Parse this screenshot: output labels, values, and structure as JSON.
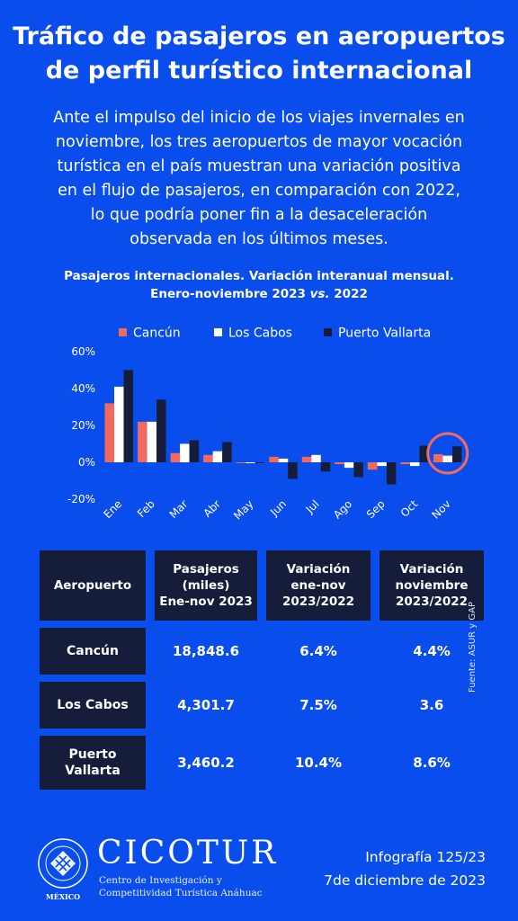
{
  "title_line1": "Tráfico de pasajeros en aeropuertos",
  "title_line2": "de perfil turístico internacional",
  "intro_lines": [
    "Ante el impulso del inicio de los viajes invernales en",
    "noviembre, los tres aeropuertos de mayor vocación",
    "turística en el país muestran una variación positiva",
    "en el flujo de pasajeros, en comparación con 2022,",
    "lo que podría poner fin a la desaceleración",
    "observada en los últimos meses."
  ],
  "chart_title_line1": "Pasajeros internacionales. Variación interanual mensual.",
  "chart_title_line2a": "Enero-noviembre 2023 ",
  "chart_title_vs": "vs.",
  "chart_title_line2b": " 2022",
  "chart_data": {
    "type": "bar",
    "categories": [
      "Ene",
      "Feb",
      "Mar",
      "Abr",
      "May",
      "Jun",
      "Jul",
      "Ago",
      "Sep",
      "Oct",
      "Nov"
    ],
    "series": [
      {
        "name": "Cancún",
        "color": "#f26a5e",
        "values": [
          32,
          22,
          5,
          4,
          0,
          3,
          3,
          -1,
          -4,
          -1,
          4.4
        ]
      },
      {
        "name": "Los Cabos",
        "color": "#ffffff",
        "values": [
          41,
          22,
          10,
          6,
          0,
          2,
          4,
          -3,
          -2,
          -2,
          3.6
        ]
      },
      {
        "name": "Puerto Vallarta",
        "color": "#151d3b",
        "values": [
          50,
          34,
          12,
          11,
          0,
          -9,
          -5,
          -8,
          -12,
          9,
          8.6
        ]
      }
    ],
    "ylim": [
      -20,
      60
    ],
    "yticks": [
      "-20%",
      "0%",
      "20%",
      "40%",
      "60%"
    ],
    "ytick_values": [
      -20,
      0,
      20,
      40,
      60
    ],
    "legend": "top",
    "highlight": "Nov",
    "highlight_color": "#f26a5e"
  },
  "table": {
    "headers": [
      "Aeropuerto",
      "Pasajeros (miles) Ene-nov 2023",
      "Variación ene-nov 2023/2022",
      "Variación noviembre 2023/2022"
    ],
    "header_lines": [
      [
        "Aeropuerto"
      ],
      [
        "Pasajeros",
        "(miles)",
        "Ene-nov 2023"
      ],
      [
        "Variación",
        "ene-nov",
        "2023/2022"
      ],
      [
        "Variación",
        "noviembre",
        "2023/2022"
      ]
    ],
    "rows": [
      {
        "name_lines": [
          "Cancún"
        ],
        "values": [
          "18,848.6",
          "6.4%",
          "4.4%"
        ]
      },
      {
        "name_lines": [
          "Los Cabos"
        ],
        "values": [
          "4,301.7",
          "7.5%",
          "3.6"
        ]
      },
      {
        "name_lines": [
          "Puerto",
          "Vallarta"
        ],
        "values": [
          "3,460.2",
          "10.4%",
          "8.6%"
        ]
      }
    ]
  },
  "source": "Fuente: ASUR y GAP",
  "logo": {
    "brand": "CICOTUR",
    "sub_line1": "Centro de Investigación y",
    "sub_line2": "Competitividad Turística Anáhuac",
    "seal_text": "UNIVERSIDAD ANÁHUAC",
    "seal_motto": "VINCE IN BONO MALUM",
    "country": "MÉXICO"
  },
  "infografia": "Infografía 125/23",
  "date": "7de diciembre de 2023"
}
